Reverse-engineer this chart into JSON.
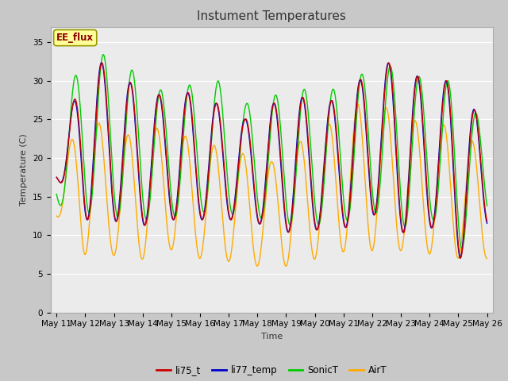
{
  "title": "Instument Temperatures",
  "xlabel": "Time",
  "ylabel": "Temperature (C)",
  "ylim": [
    0,
    37
  ],
  "yticks": [
    0,
    5,
    10,
    15,
    20,
    25,
    30,
    35
  ],
  "xtick_labels": [
    "May 11",
    "May 12",
    "May 13",
    "May 14",
    "May 15",
    "May 16",
    "May 17",
    "May 18",
    "May 19",
    "May 20",
    "May 21",
    "May 22",
    "May 23",
    "May 24",
    "May 25",
    "May 26"
  ],
  "annotation_text": "EE_flux",
  "colors": {
    "li75_t": "#cc0000",
    "li77_temp": "#0000cc",
    "SonicT": "#00cc00",
    "AirT": "#ffaa00"
  },
  "fig_bg_color": "#c8c8c8",
  "plot_bg_color": "#ebebeb",
  "grid_color": "#ffffff",
  "title_fontsize": 11,
  "axis_fontsize": 8,
  "tick_fontsize": 7.5
}
